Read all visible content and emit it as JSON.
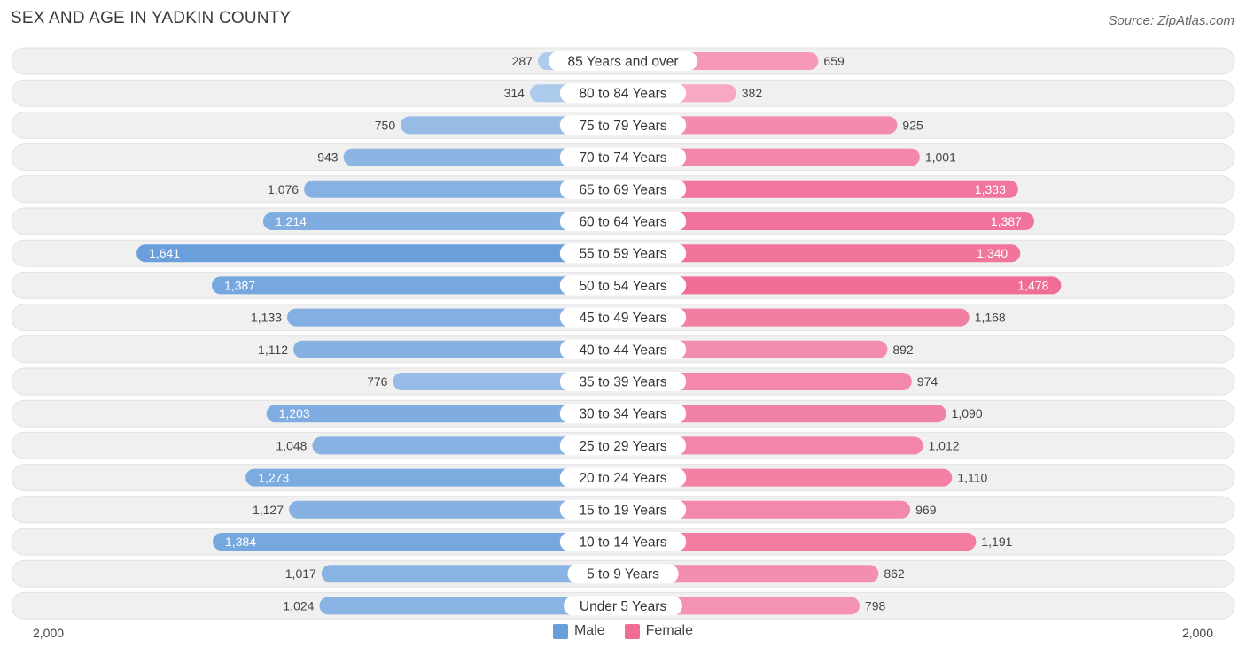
{
  "title": "SEX AND AGE IN YADKIN COUNTY",
  "source": "Source: ZipAtlas.com",
  "colors": {
    "male": "#6a9fdc",
    "female": "#f06d96",
    "row_bg": "#f0f0f0"
  },
  "legend": {
    "male_label": "Male",
    "female_label": "Female"
  },
  "axis": {
    "left_label": "2,000",
    "right_label": "2,000"
  },
  "chart_data": {
    "type": "bar",
    "orientation": "horizontal-diverging",
    "title": "SEX AND AGE IN YADKIN COUNTY",
    "xlim": [
      -2000,
      2000
    ],
    "categories": [
      "85 Years and over",
      "80 to 84 Years",
      "75 to 79 Years",
      "70 to 74 Years",
      "65 to 69 Years",
      "60 to 64 Years",
      "55 to 59 Years",
      "50 to 54 Years",
      "45 to 49 Years",
      "40 to 44 Years",
      "35 to 39 Years",
      "30 to 34 Years",
      "25 to 29 Years",
      "20 to 24 Years",
      "15 to 19 Years",
      "10 to 14 Years",
      "5 to 9 Years",
      "Under 5 Years"
    ],
    "series": [
      {
        "name": "Male",
        "values": [
          287,
          314,
          750,
          943,
          1076,
          1214,
          1641,
          1387,
          1133,
          1112,
          776,
          1203,
          1048,
          1273,
          1127,
          1384,
          1017,
          1024
        ],
        "labels": [
          "287",
          "314",
          "750",
          "943",
          "1,076",
          "1,214",
          "1,641",
          "1,387",
          "1,133",
          "1,112",
          "776",
          "1,203",
          "1,048",
          "1,273",
          "1,127",
          "1,384",
          "1,017",
          "1,024"
        ]
      },
      {
        "name": "Female",
        "values": [
          659,
          382,
          925,
          1001,
          1333,
          1387,
          1340,
          1478,
          1168,
          892,
          974,
          1090,
          1012,
          1110,
          969,
          1191,
          862,
          798
        ],
        "labels": [
          "659",
          "382",
          "925",
          "1,001",
          "1,333",
          "1,387",
          "1,340",
          "1,478",
          "1,168",
          "892",
          "974",
          "1,090",
          "1,012",
          "1,110",
          "969",
          "1,191",
          "862",
          "798"
        ]
      }
    ],
    "legend_position": "bottom-center"
  }
}
